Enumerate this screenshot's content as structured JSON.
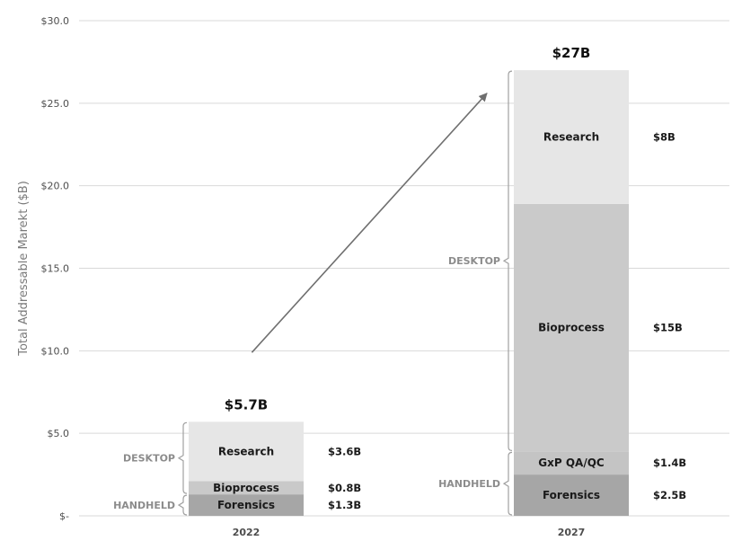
{
  "chart_data": {
    "type": "bar",
    "stacked": true,
    "ylabel": "Total Addressable Marekt ($B)",
    "ylim": [
      0,
      30
    ],
    "yticks": [
      {
        "value": 0,
        "label": "$-"
      },
      {
        "value": 5,
        "label": "$5.0"
      },
      {
        "value": 10,
        "label": "$10.0"
      },
      {
        "value": 15,
        "label": "$15.0"
      },
      {
        "value": 20,
        "label": "$20.0"
      },
      {
        "value": 25,
        "label": "$25.0"
      },
      {
        "value": 30,
        "label": "$30.0"
      }
    ],
    "grid": true,
    "bars": [
      {
        "category": "2022",
        "total_label": "$5.7B",
        "segments": [
          {
            "name": "Forensics",
            "value": 1.3,
            "value_label": "$1.3B",
            "color": "#a6a6a6"
          },
          {
            "name": "Bioprocess",
            "value": 0.8,
            "value_label": "$0.8B",
            "color": "#c9c9c9"
          },
          {
            "name": "Research",
            "value": 3.6,
            "value_label": "$3.6B",
            "color": "#e6e6e6"
          }
        ],
        "groups": [
          {
            "label": "HANDHELD",
            "from": 0,
            "to": 1.3
          },
          {
            "label": "DESKTOP",
            "from": 1.3,
            "to": 5.7
          }
        ]
      },
      {
        "category": "2027",
        "total_label": "$27B",
        "segments": [
          {
            "name": "Forensics",
            "value": 2.5,
            "value_label": "$2.5B",
            "color": "#a6a6a6"
          },
          {
            "name": "GxP QA/QC",
            "value": 1.4,
            "value_label": "$1.4B",
            "color": "#c4c4c4"
          },
          {
            "name": "Bioprocess",
            "value": 15,
            "value_label": "$15B",
            "color": "#cacaca"
          },
          {
            "name": "Research",
            "value": 8.1,
            "value_label": "$8B",
            "color": "#e6e6e6"
          }
        ],
        "groups": [
          {
            "label": "HANDHELD",
            "from": 0,
            "to": 3.9
          },
          {
            "label": "DESKTOP",
            "from": 3.9,
            "to": 27
          }
        ]
      }
    ],
    "arrow": {
      "from": {
        "category": "2022",
        "value": 9.9
      },
      "to": {
        "category": "2027",
        "value": 25.6
      }
    }
  }
}
